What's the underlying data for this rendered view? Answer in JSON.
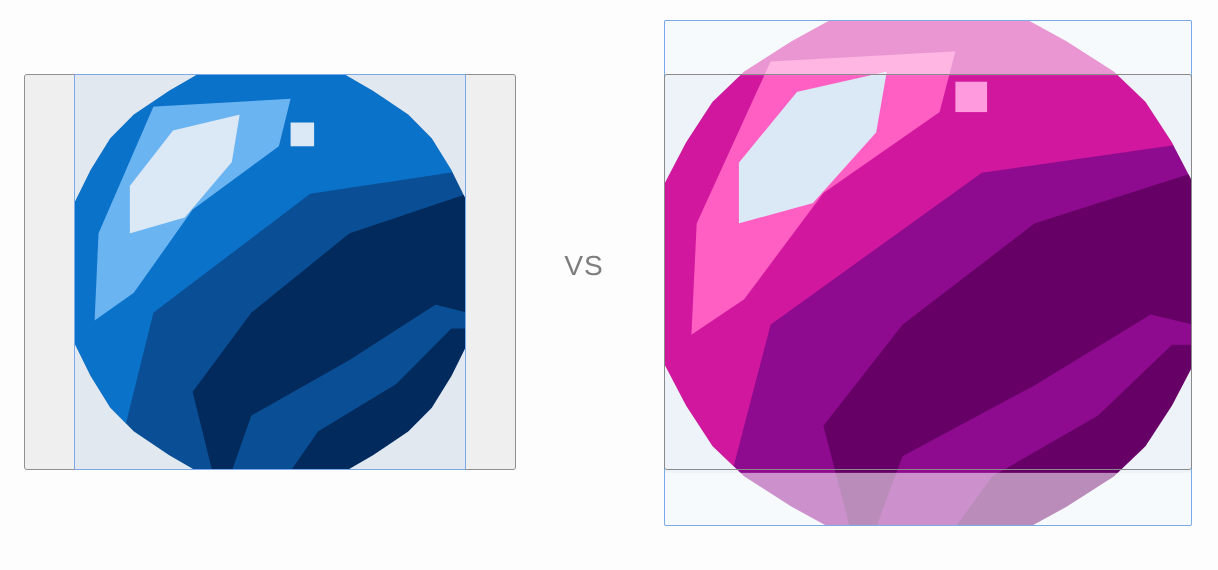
{
  "vs_label": "VS",
  "left_image": {
    "icon": "blue-orb-icon",
    "colors": {
      "dark": "#032a5c",
      "mid": "#0a4f96",
      "bright": "#0a72c9",
      "light": "#6ab4f2",
      "highlight": "#dbe8f6",
      "background": "#e1e8f0"
    }
  },
  "right_image": {
    "icon": "magenta-orb-icon",
    "colors": {
      "dark": "#660066",
      "mid": "#8e0a8e",
      "bright": "#d0179e",
      "light": "#ff5ec2",
      "highlight": "#dbe8f6",
      "background": "#eef3fa"
    }
  }
}
